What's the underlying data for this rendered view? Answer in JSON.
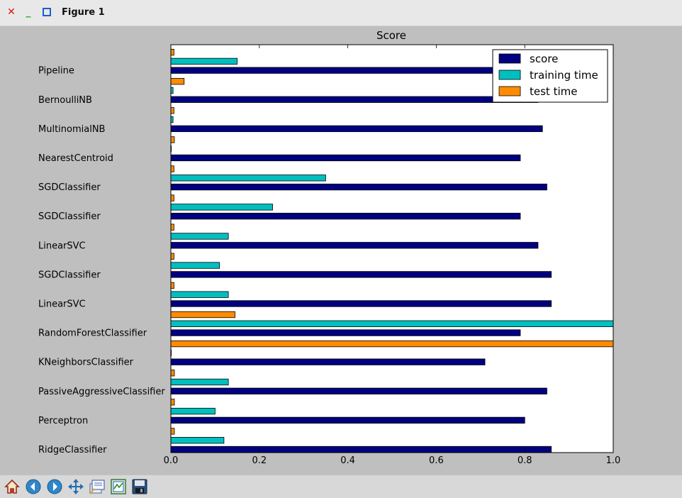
{
  "window": {
    "title": "Figure 1"
  },
  "toolbar": {
    "buttons": [
      {
        "name": "home-icon"
      },
      {
        "name": "back-icon"
      },
      {
        "name": "forward-icon"
      },
      {
        "name": "pan-icon"
      },
      {
        "name": "zoom-icon"
      },
      {
        "name": "subplots-icon"
      },
      {
        "name": "save-icon"
      }
    ]
  },
  "colors": {
    "score": "#000080",
    "training time": "#00bfbf",
    "test time": "#ff8c00"
  },
  "chart_data": {
    "type": "bar",
    "orientation": "horizontal",
    "title": "Score",
    "xlabel": "",
    "ylabel": "",
    "xlim": [
      0.0,
      1.0
    ],
    "xticks": [
      "0.0",
      "0.2",
      "0.4",
      "0.6",
      "0.8",
      "1.0"
    ],
    "grid": false,
    "legend_position": "upper-right",
    "categories": [
      "RidgeClassifier",
      "Perceptron",
      "PassiveAggressiveClassifier",
      "KNeighborsClassifier",
      "RandomForestClassifier",
      "LinearSVC",
      "SGDClassifier",
      "LinearSVC",
      "SGDClassifier",
      "SGDClassifier",
      "NearestCentroid",
      "MultinomialNB",
      "BernoulliNB",
      "Pipeline"
    ],
    "series": [
      {
        "name": "score",
        "values": [
          0.86,
          0.8,
          0.85,
          0.71,
          0.79,
          0.86,
          0.86,
          0.83,
          0.79,
          0.85,
          0.79,
          0.84,
          0.83,
          0.86
        ]
      },
      {
        "name": "training time",
        "values": [
          0.12,
          0.1,
          0.13,
          0.0,
          1.0,
          0.13,
          0.11,
          0.13,
          0.23,
          0.35,
          0.0,
          0.005,
          0.005,
          0.15
        ]
      },
      {
        "name": "test time",
        "values": [
          0.008,
          0.008,
          0.008,
          1.0,
          0.145,
          0.007,
          0.007,
          0.007,
          0.007,
          0.007,
          0.008,
          0.007,
          0.03,
          0.007
        ]
      }
    ]
  }
}
